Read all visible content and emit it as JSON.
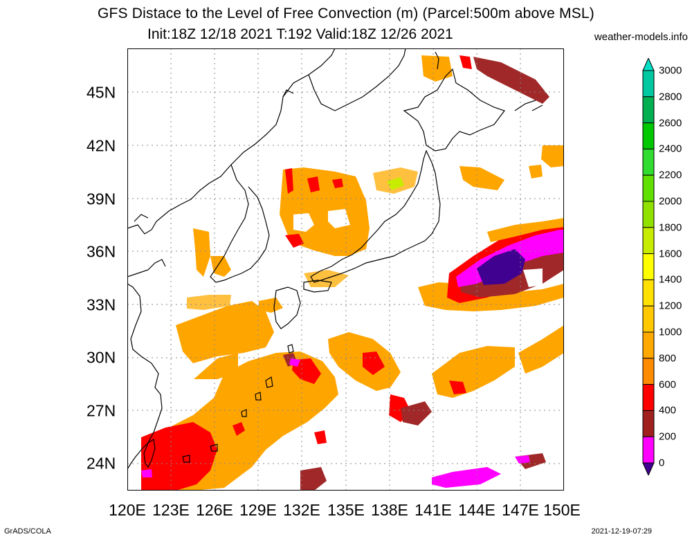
{
  "title": {
    "line1": "GFS Distace to the Level of Free Convection (m) (Parcel:500m above MSL)",
    "line2": "Init:18Z 12/18 2021 T:192 Valid:18Z 12/26 2021",
    "site": "weather-models.info"
  },
  "axes": {
    "x_ticks": [
      "120E",
      "123E",
      "126E",
      "129E",
      "132E",
      "135E",
      "138E",
      "141E",
      "144E",
      "147E",
      "150E"
    ],
    "y_ticks": [
      "45N",
      "42N",
      "39N",
      "36N",
      "33N",
      "30N",
      "27N",
      "24N"
    ]
  },
  "colorbar": {
    "labels": [
      "3000",
      "2800",
      "2600",
      "2400",
      "2200",
      "2000",
      "1800",
      "1600",
      "1400",
      "1200",
      "1000",
      "800",
      "600",
      "400",
      "200",
      "0"
    ],
    "colors": [
      "#00e0c8",
      "#00c8a0",
      "#00b050",
      "#00c800",
      "#30dc30",
      "#60e000",
      "#90e000",
      "#c8ec00",
      "#ffff00",
      "#ffe000",
      "#ffc800",
      "#ffa800",
      "#ff8c00",
      "#ff0000",
      "#a02020",
      "#ff00ff",
      "#400090"
    ]
  },
  "footer": {
    "left": "GrADS/COLA",
    "right": "2021-12-19-07:29"
  },
  "colors": {
    "orange": "#ffa500",
    "light_orange": "#ffc040",
    "red": "#ff0000",
    "dark_red": "#a02828",
    "magenta": "#ff00ff",
    "purple": "#400090"
  }
}
